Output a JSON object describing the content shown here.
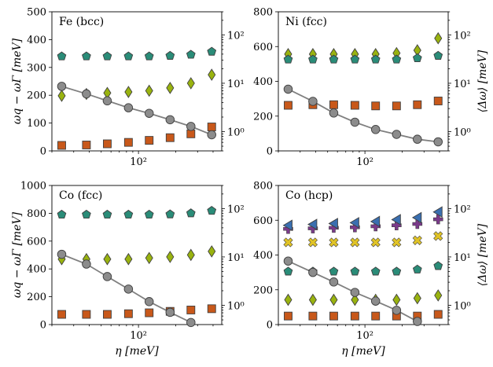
{
  "figure": {
    "shared": {
      "eta": [
        24,
        38,
        56,
        83,
        122,
        180,
        265,
        390
      ],
      "xticks": [
        {
          "value": 100,
          "label": "10²"
        }
      ],
      "xlabel": "η [meV]",
      "ylabel_left": "ωq − ωΓ [meV]",
      "ylabel_right": "⟨Δω⟩ [meV]",
      "rticks": [
        {
          "value": 1,
          "label": "10⁰"
        },
        {
          "value": 10,
          "label": "10¹"
        },
        {
          "value": 100,
          "label": "10²"
        }
      ],
      "colors": {
        "grey_line": "#808080",
        "grey_marker": "#8c8c8c",
        "orange": "#c8581a",
        "olive": "#99b30f",
        "teal": "#2a8c78",
        "yellow": "#e0c326",
        "purple": "#7a3a8a",
        "blue": "#3a6fb0",
        "edge": "#404040"
      }
    }
  },
  "chart_data": [
    {
      "type": "line+scatter",
      "title": "Fe (bcc)",
      "ylim": [
        0,
        500
      ],
      "yticks": [
        0,
        100,
        200,
        300,
        400,
        500
      ],
      "rlim": [
        0.4,
        300
      ],
      "line_values": [
        232,
        205,
        180,
        155,
        135,
        112,
        88,
        58
      ],
      "series": [
        {
          "name": "square",
          "values": [
            0.52,
            0.53,
            0.56,
            0.6,
            0.66,
            0.75,
            0.9,
            1.25
          ]
        },
        {
          "name": "diamond",
          "values": [
            5.5,
            6,
            6.3,
            6.6,
            7,
            8,
            10,
            15
          ]
        },
        {
          "name": "pentagon",
          "values": [
            36,
            36,
            36,
            36,
            36,
            37,
            39,
            45
          ]
        }
      ]
    },
    {
      "type": "line+scatter",
      "title": "Ni (fcc)",
      "ylim": [
        0,
        800
      ],
      "yticks": [
        0,
        200,
        400,
        600,
        800
      ],
      "rlim": [
        0.4,
        300
      ],
      "line_values": [
        355,
        285,
        218,
        165,
        123,
        95,
        67,
        52
      ],
      "series": [
        {
          "name": "square",
          "values": [
            3.5,
            3.6,
            3.6,
            3.5,
            3.4,
            3.4,
            3.6,
            4.3
          ]
        },
        {
          "name": "diamond",
          "values": [
            40,
            40,
            40,
            40,
            40,
            42,
            48,
            85
          ]
        },
        {
          "name": "pentagon",
          "values": [
            31,
            31,
            31,
            31,
            31,
            31,
            33,
            37
          ]
        }
      ]
    },
    {
      "type": "line+scatter",
      "title": "Co (fcc)",
      "ylim": [
        0,
        1000
      ],
      "yticks": [
        0,
        200,
        400,
        600,
        800,
        1000
      ],
      "rlim": [
        0.4,
        300
      ],
      "line_values": [
        505,
        435,
        345,
        255,
        165,
        88,
        15
      ],
      "series": [
        {
          "name": "square",
          "values": [
            0.65,
            0.65,
            0.65,
            0.67,
            0.7,
            0.75,
            0.8,
            0.85
          ]
        },
        {
          "name": "diamond",
          "values": [
            9,
            9,
            9,
            9,
            9.5,
            10,
            11,
            13
          ]
        },
        {
          "name": "pentagon",
          "values": [
            75,
            75,
            75,
            75,
            75,
            76,
            80,
            90
          ]
        }
      ]
    },
    {
      "type": "line+scatter",
      "title": "Co (hcp)",
      "ylim": [
        0,
        800
      ],
      "yticks": [
        0,
        200,
        400,
        600,
        800
      ],
      "rlim": [
        0.4,
        300
      ],
      "line_values": [
        365,
        300,
        245,
        185,
        135,
        82,
        18
      ],
      "series": [
        {
          "name": "square",
          "values": [
            0.6,
            0.6,
            0.6,
            0.6,
            0.6,
            0.6,
            0.6,
            0.65
          ]
        },
        {
          "name": "diamond",
          "values": [
            1.3,
            1.3,
            1.3,
            1.3,
            1.3,
            1.3,
            1.4,
            1.6
          ]
        },
        {
          "name": "pentagon",
          "values": [
            5,
            5,
            5,
            5,
            5,
            5,
            5.5,
            6.5
          ]
        },
        {
          "name": "x-mark",
          "values": [
            20,
            20,
            20,
            20,
            20,
            20,
            22,
            27
          ]
        },
        {
          "name": "plus",
          "values": [
            38,
            39,
            40,
            41,
            43,
            45,
            48,
            60
          ]
        },
        {
          "name": "triangle",
          "values": [
            45,
            47,
            49,
            51,
            54,
            59,
            65,
            85
          ]
        }
      ]
    }
  ]
}
